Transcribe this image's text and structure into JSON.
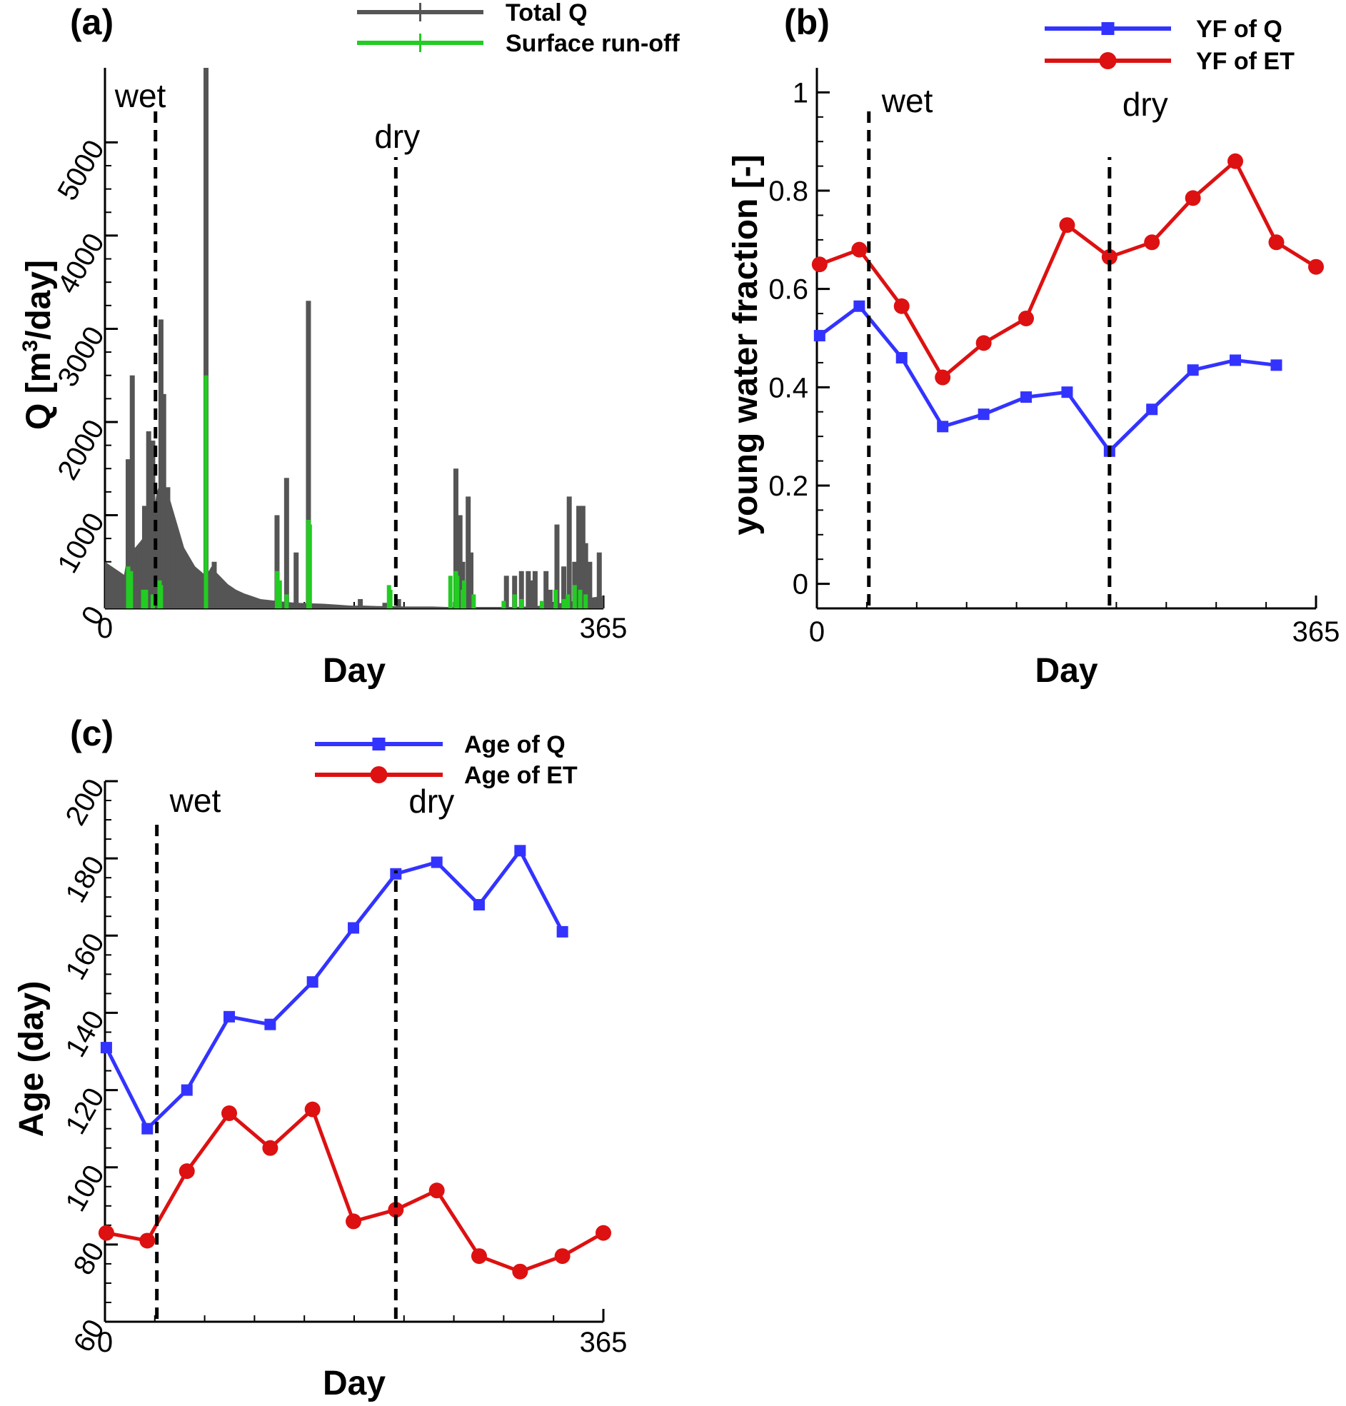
{
  "chart_data": [
    {
      "panel_label": "(a)",
      "type": "bar",
      "xlabel": "Day",
      "ylabel": "Q [m³/day]",
      "ylabel_parts": {
        "pre": "Q [m",
        "sup": "3",
        "post": "/day]"
      },
      "xlim": [
        0,
        365
      ],
      "ylim": [
        0,
        5800
      ],
      "xtick_labels": [
        "0",
        "365"
      ],
      "ytick_values": [
        0,
        1000,
        2000,
        3000,
        4000,
        5000
      ],
      "ytick_labels": [
        "0",
        "1000",
        "2000",
        "3000",
        "4000",
        "5000"
      ],
      "legend_position": "top-center",
      "annotations": [
        {
          "text": "wet",
          "x": 37
        },
        {
          "text": "dry",
          "x": 213
        }
      ],
      "series": [
        {
          "name": "Total Q",
          "color": "#555555",
          "baseflow_x": [
            0,
            5,
            10,
            14,
            18,
            22,
            26,
            30,
            34,
            38,
            42,
            46,
            50,
            54,
            58,
            62,
            66,
            70,
            74,
            78,
            82,
            86,
            90,
            96,
            102,
            108,
            114,
            120,
            126,
            132,
            140,
            150,
            160,
            170,
            180,
            190,
            200,
            210,
            220,
            230,
            240,
            250,
            260,
            270,
            280,
            290,
            300,
            310,
            320,
            330,
            340,
            350,
            358,
            365
          ],
          "baseflow_y": [
            500,
            450,
            400,
            360,
            700,
            650,
            720,
            800,
            900,
            1250,
            1400,
            1250,
            1050,
            850,
            650,
            550,
            450,
            400,
            350,
            450,
            380,
            320,
            260,
            200,
            160,
            130,
            100,
            90,
            80,
            70,
            60,
            55,
            50,
            40,
            30,
            30,
            25,
            25,
            20,
            20,
            20,
            15,
            15,
            15,
            15,
            15,
            15,
            20,
            30,
            50,
            70,
            100,
            120,
            130
          ],
          "spikes_x": [
            17,
            20,
            29,
            32,
            35,
            39,
            41,
            43,
            46,
            74,
            80,
            126,
            133,
            140,
            149,
            187,
            205,
            215,
            257,
            260,
            262,
            266,
            268,
            294,
            300,
            305,
            310,
            312,
            315,
            323,
            326,
            331,
            336,
            340,
            344,
            347,
            350,
            352,
            355,
            362
          ],
          "spikes_y": [
            1600,
            2500,
            1100,
            1900,
            1800,
            1000,
            3100,
            2300,
            1300,
            5800,
            500,
            1000,
            1400,
            600,
            3300,
            100,
            60,
            100,
            1500,
            1000,
            500,
            1200,
            600,
            350,
            350,
            400,
            400,
            300,
            400,
            400,
            200,
            900,
            450,
            1200,
            500,
            1100,
            1100,
            700,
            500,
            600
          ]
        },
        {
          "name": "Surface run-off",
          "color": "#22cc22",
          "spikes_x": [
            17,
            19,
            28,
            30,
            35,
            40,
            41,
            74,
            126,
            128,
            133,
            149,
            150,
            208,
            209,
            253,
            257,
            258,
            262,
            263,
            270,
            292,
            300,
            305,
            320,
            330,
            336,
            339,
            344,
            348,
            352
          ],
          "spikes_y": [
            450,
            400,
            200,
            200,
            150,
            300,
            250,
            2500,
            400,
            300,
            150,
            950,
            900,
            250,
            200,
            350,
            400,
            350,
            200,
            300,
            150,
            80,
            150,
            100,
            80,
            200,
            100,
            150,
            250,
            200,
            150
          ]
        }
      ]
    },
    {
      "panel_label": "(b)",
      "type": "line",
      "xlabel": "Day",
      "ylabel": "young water fraction [-]",
      "xlim": [
        0,
        365
      ],
      "ylim": [
        -0.05,
        1.05
      ],
      "xtick_labels": [
        "0",
        "365"
      ],
      "ytick_values": [
        0,
        0.2,
        0.4,
        0.6,
        0.8,
        1
      ],
      "ytick_labels": [
        "0",
        "0.2",
        "0.4",
        "0.6",
        "0.8",
        "1"
      ],
      "legend_position": "top-right",
      "annotations": [
        {
          "text": "wet",
          "x": 38
        },
        {
          "text": "dry",
          "x": 214
        }
      ],
      "series": [
        {
          "name": "YF of Q",
          "color": "#3333ff",
          "marker": "square",
          "x": [
            2,
            31,
            62,
            92,
            122,
            153,
            183,
            214,
            245,
            275,
            306,
            336
          ],
          "y": [
            0.505,
            0.565,
            0.46,
            0.32,
            0.345,
            0.38,
            0.39,
            0.27,
            0.355,
            0.435,
            0.455,
            0.445
          ]
        },
        {
          "name": "YF of ET",
          "color": "#dd1111",
          "marker": "circle",
          "x": [
            2,
            31,
            62,
            92,
            122,
            153,
            183,
            214,
            245,
            275,
            306,
            336,
            365
          ],
          "y": [
            0.65,
            0.68,
            0.565,
            0.42,
            0.49,
            0.54,
            0.73,
            0.665,
            0.695,
            0.785,
            0.86,
            0.695,
            0.645
          ]
        }
      ]
    },
    {
      "panel_label": "(c)",
      "type": "line",
      "xlabel": "Day",
      "ylabel": "Age (day)",
      "xlim": [
        0,
        365
      ],
      "ylim": [
        60,
        200
      ],
      "xtick_labels": [
        "0",
        "365"
      ],
      "ytick_values": [
        60,
        80,
        100,
        120,
        140,
        160,
        180,
        200
      ],
      "ytick_labels": [
        "60",
        "80",
        "100",
        "120",
        "140",
        "160",
        "180",
        "200"
      ],
      "legend_position": "top-center",
      "annotations": [
        {
          "text": "wet",
          "x": 38
        },
        {
          "text": "dry",
          "x": 213
        }
      ],
      "series": [
        {
          "name": "Age of Q",
          "color": "#3333ff",
          "marker": "square",
          "x": [
            1,
            31,
            60,
            91,
            121,
            152,
            182,
            213,
            243,
            274,
            304,
            335
          ],
          "y": [
            131,
            110,
            120,
            139,
            137,
            148,
            162,
            176,
            179,
            168,
            182,
            161
          ]
        },
        {
          "name": "Age of ET",
          "color": "#dd1111",
          "marker": "circle",
          "x": [
            1,
            31,
            60,
            91,
            121,
            152,
            182,
            213,
            243,
            274,
            304,
            335,
            365
          ],
          "y": [
            83,
            81,
            99,
            114,
            105,
            115,
            86,
            89,
            94,
            77,
            73,
            77,
            83
          ]
        }
      ]
    }
  ]
}
